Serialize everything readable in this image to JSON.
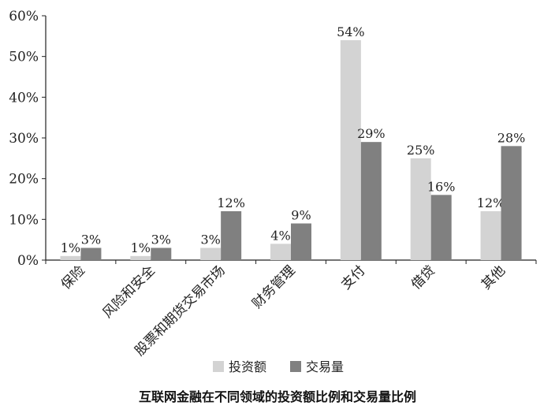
{
  "chart_data": {
    "type": "bar",
    "title": "互联网金融在不同领域的投资额比例和交易量比例",
    "categories": [
      "保险",
      "风险和安全",
      "股票和期货交易市场",
      "财务管理",
      "支付",
      "借贷",
      "其他"
    ],
    "series": [
      {
        "name": "投资额",
        "values": [
          1,
          1,
          3,
          4,
          54,
          25,
          12
        ],
        "labels": [
          "1%",
          "1%",
          "3%",
          "4%",
          "54%",
          "25%",
          "12%"
        ],
        "color": "#d3d3d3"
      },
      {
        "name": "交易量",
        "values": [
          3,
          3,
          12,
          9,
          29,
          16,
          28
        ],
        "labels": [
          "3%",
          "3%",
          "12%",
          "9%",
          "29%",
          "16%",
          "28%"
        ],
        "color": "#808080"
      }
    ],
    "yticks": [
      "0%",
      "10%",
      "20%",
      "30%",
      "40%",
      "50%",
      "60%"
    ],
    "ylim": [
      0,
      60
    ],
    "legend_position": "bottom",
    "grid": false
  }
}
